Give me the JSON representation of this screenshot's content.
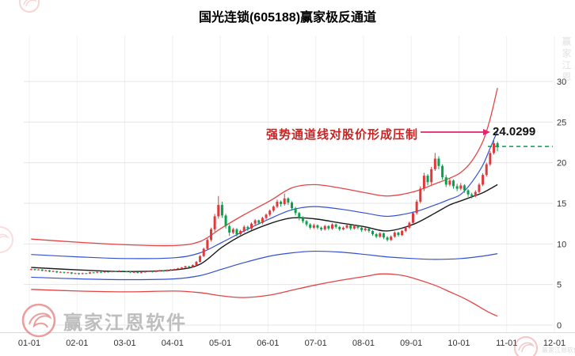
{
  "annotation": {
    "text": "强势通道线对股价形成压制",
    "price_label": "24.0299"
  },
  "watermarks": {
    "bottom_left_text": "赢家江恩软件",
    "corner_text": "赢家江恩软件",
    "side_text": "赢家江恩"
  },
  "colors": {
    "up": "#e0393c",
    "down": "#0aa04e",
    "channel_red": "#e34545",
    "channel_blue": "#3350d4",
    "life_line": "#1a1a1a",
    "grid_h": "#e4e4e4",
    "grid_v": "#f0f0f0",
    "frame": "#d8d8d8",
    "axis_text": "#333333",
    "arrow": "#e1246e",
    "price_dash": "#00a04a"
  },
  "chart_data": {
    "type": "candlestick",
    "title": "国光连锁(605188)赢家极反通道",
    "ylim": [
      0,
      30
    ],
    "y_ticks": [
      30,
      25,
      20,
      15,
      10,
      5,
      0
    ],
    "x_labels": [
      "01-01",
      "02-01",
      "03-01",
      "04-01",
      "05-01",
      "06-01",
      "07-01",
      "08-01",
      "09-01",
      "10-01",
      "11-01",
      "12-01"
    ],
    "candles_per_month": 13,
    "last_price_dash": 22.0,
    "candles": [
      [
        6.85,
        6.95,
        6.75,
        6.9
      ],
      [
        6.9,
        6.95,
        6.72,
        6.8
      ],
      [
        6.8,
        6.9,
        6.76,
        6.85
      ],
      [
        6.85,
        6.88,
        6.62,
        6.7
      ],
      [
        6.7,
        6.82,
        6.65,
        6.75
      ],
      [
        6.75,
        6.78,
        6.52,
        6.6
      ],
      [
        6.6,
        6.72,
        6.55,
        6.65
      ],
      [
        6.65,
        6.68,
        6.42,
        6.5
      ],
      [
        6.5,
        6.62,
        6.45,
        6.55
      ],
      [
        6.55,
        6.58,
        6.36,
        6.45
      ],
      [
        6.45,
        6.56,
        6.4,
        6.5
      ],
      [
        6.5,
        6.52,
        6.28,
        6.35
      ],
      [
        6.35,
        6.46,
        6.3,
        6.4
      ],
      [
        6.4,
        6.44,
        6.22,
        6.3
      ],
      [
        6.3,
        6.46,
        6.26,
        6.4
      ],
      [
        6.4,
        6.43,
        6.28,
        6.35
      ],
      [
        6.35,
        6.56,
        6.3,
        6.5
      ],
      [
        6.5,
        6.53,
        6.38,
        6.45
      ],
      [
        6.45,
        6.61,
        6.4,
        6.55
      ],
      [
        6.55,
        6.58,
        6.42,
        6.5
      ],
      [
        6.5,
        6.66,
        6.45,
        6.6
      ],
      [
        6.6,
        6.63,
        6.47,
        6.55
      ],
      [
        6.55,
        6.71,
        6.5,
        6.65
      ],
      [
        6.65,
        6.68,
        6.52,
        6.6
      ],
      [
        6.6,
        6.76,
        6.55,
        6.7
      ],
      [
        6.7,
        6.73,
        6.57,
        6.65
      ],
      [
        6.65,
        6.68,
        6.5,
        6.6
      ],
      [
        6.6,
        6.63,
        6.42,
        6.5
      ],
      [
        6.5,
        6.61,
        6.45,
        6.55
      ],
      [
        6.55,
        6.58,
        6.37,
        6.45
      ],
      [
        6.45,
        6.56,
        6.4,
        6.5
      ],
      [
        6.5,
        6.66,
        6.45,
        6.6
      ],
      [
        6.6,
        6.71,
        6.52,
        6.65
      ],
      [
        6.65,
        6.68,
        6.47,
        6.55
      ],
      [
        6.55,
        6.76,
        6.5,
        6.7
      ],
      [
        6.7,
        6.81,
        6.62,
        6.75
      ],
      [
        6.75,
        6.78,
        6.57,
        6.65
      ],
      [
        6.65,
        6.86,
        6.6,
        6.8
      ],
      [
        6.8,
        6.91,
        6.72,
        6.85
      ],
      [
        6.85,
        6.96,
        6.78,
        6.9
      ],
      [
        6.9,
        7.06,
        6.84,
        7.0
      ],
      [
        7.0,
        7.16,
        6.92,
        7.1
      ],
      [
        7.1,
        7.32,
        7.02,
        7.25
      ],
      [
        7.25,
        7.3,
        7.08,
        7.2
      ],
      [
        7.2,
        7.48,
        7.12,
        7.4
      ],
      [
        7.4,
        7.9,
        7.32,
        7.8
      ],
      [
        7.8,
        8.62,
        7.7,
        8.5
      ],
      [
        8.5,
        9.55,
        8.4,
        9.4
      ],
      [
        9.4,
        10.7,
        9.3,
        10.5
      ],
      [
        10.5,
        12.0,
        10.3,
        11.8
      ],
      [
        11.8,
        13.7,
        11.5,
        13.4
      ],
      [
        13.4,
        15.9,
        13.1,
        14.8
      ],
      [
        14.8,
        15.2,
        13.2,
        13.5
      ],
      [
        13.5,
        13.7,
        11.9,
        12.2
      ],
      [
        12.2,
        12.4,
        11.0,
        11.4
      ],
      [
        11.4,
        12.0,
        11.2,
        11.8
      ],
      [
        11.8,
        11.95,
        10.9,
        11.2
      ],
      [
        11.2,
        11.75,
        11.0,
        11.6
      ],
      [
        11.6,
        12.3,
        11.4,
        12.1
      ],
      [
        12.1,
        12.25,
        11.6,
        11.9
      ],
      [
        11.9,
        12.65,
        11.7,
        12.5
      ],
      [
        12.5,
        13.05,
        12.3,
        12.9
      ],
      [
        12.9,
        13.0,
        12.35,
        12.6
      ],
      [
        12.6,
        13.35,
        12.4,
        13.2
      ],
      [
        13.2,
        13.75,
        13.0,
        13.6
      ],
      [
        13.6,
        14.25,
        13.4,
        14.1
      ],
      [
        14.1,
        14.75,
        13.9,
        14.6
      ],
      [
        14.6,
        15.45,
        14.4,
        15.2
      ],
      [
        15.2,
        15.35,
        14.6,
        14.9
      ],
      [
        14.9,
        16.2,
        14.7,
        15.6
      ],
      [
        15.6,
        15.75,
        14.8,
        15.1
      ],
      [
        15.1,
        15.25,
        14.1,
        14.4
      ],
      [
        14.4,
        14.55,
        13.5,
        13.8
      ],
      [
        13.8,
        13.95,
        12.9,
        13.2
      ],
      [
        13.2,
        13.4,
        12.55,
        12.8
      ],
      [
        12.8,
        12.95,
        12.15,
        12.4
      ],
      [
        12.4,
        12.55,
        11.8,
        12.0
      ],
      [
        12.0,
        12.5,
        11.85,
        12.3
      ],
      [
        12.3,
        12.4,
        11.8,
        12.0
      ],
      [
        12.0,
        12.15,
        11.6,
        11.8
      ],
      [
        11.8,
        12.35,
        11.65,
        12.2
      ],
      [
        12.2,
        12.3,
        11.7,
        11.9
      ],
      [
        11.9,
        12.55,
        11.75,
        12.4
      ],
      [
        12.4,
        12.5,
        11.9,
        12.1
      ],
      [
        12.1,
        12.2,
        11.6,
        11.8
      ],
      [
        11.8,
        12.15,
        11.65,
        12.0
      ],
      [
        12.0,
        12.45,
        11.85,
        12.3
      ],
      [
        12.3,
        12.4,
        11.7,
        11.9
      ],
      [
        11.9,
        12.35,
        11.75,
        12.2
      ],
      [
        12.2,
        12.3,
        11.8,
        12.0
      ],
      [
        12.0,
        12.1,
        11.5,
        11.7
      ],
      [
        11.7,
        12.05,
        11.55,
        11.9
      ],
      [
        11.9,
        12.0,
        11.4,
        11.6
      ],
      [
        11.6,
        11.7,
        11.0,
        11.2
      ],
      [
        11.2,
        11.35,
        10.7,
        10.9
      ],
      [
        10.9,
        11.45,
        10.75,
        11.3
      ],
      [
        11.3,
        11.4,
        10.6,
        10.8
      ],
      [
        10.8,
        10.95,
        10.3,
        10.5
      ],
      [
        10.5,
        11.05,
        10.35,
        10.9
      ],
      [
        10.9,
        11.55,
        10.75,
        11.4
      ],
      [
        11.4,
        11.5,
        10.9,
        11.1
      ],
      [
        11.1,
        11.75,
        10.95,
        11.6
      ],
      [
        11.6,
        12.15,
        11.45,
        12.0
      ],
      [
        12.0,
        12.75,
        11.85,
        12.6
      ],
      [
        12.6,
        14.0,
        12.5,
        13.8
      ],
      [
        13.8,
        15.45,
        13.6,
        15.2
      ],
      [
        15.2,
        17.1,
        15.0,
        16.8
      ],
      [
        16.8,
        18.75,
        16.5,
        18.4
      ],
      [
        18.4,
        18.6,
        17.2,
        17.6
      ],
      [
        17.6,
        19.5,
        17.3,
        19.2
      ],
      [
        19.2,
        21.2,
        19.0,
        20.5
      ],
      [
        20.5,
        20.8,
        19.2,
        19.6
      ],
      [
        19.6,
        19.8,
        17.9,
        18.2
      ],
      [
        18.2,
        18.5,
        17.0,
        17.3
      ],
      [
        17.3,
        18.1,
        17.1,
        17.8
      ],
      [
        17.8,
        17.95,
        16.8,
        17.1
      ],
      [
        17.1,
        17.4,
        16.5,
        16.8
      ],
      [
        16.8,
        17.5,
        16.6,
        17.2
      ],
      [
        17.2,
        17.35,
        16.3,
        16.6
      ],
      [
        16.6,
        16.75,
        15.8,
        16.1
      ],
      [
        16.1,
        16.3,
        15.6,
        15.9
      ],
      [
        15.9,
        16.6,
        15.75,
        16.4
      ],
      [
        16.4,
        17.5,
        16.25,
        17.3
      ],
      [
        17.3,
        18.7,
        17.1,
        18.5
      ],
      [
        18.5,
        20.0,
        18.3,
        19.8
      ],
      [
        19.8,
        21.45,
        19.6,
        21.2
      ],
      [
        21.2,
        22.8,
        21.0,
        22.4
      ],
      [
        22.4,
        22.6,
        21.4,
        21.9
      ]
    ],
    "lines": [
      {
        "name": "upper-outer-channel-red",
        "color": "#e34545",
        "width": 1.3,
        "points": [
          [
            0,
            10.6
          ],
          [
            13,
            10.2
          ],
          [
            26,
            9.9
          ],
          [
            39,
            9.8
          ],
          [
            46,
            10.3
          ],
          [
            52,
            12.0
          ],
          [
            58,
            13.6
          ],
          [
            65,
            15.3
          ],
          [
            71,
            16.9
          ],
          [
            77,
            17.3
          ],
          [
            84,
            16.9
          ],
          [
            91,
            16.3
          ],
          [
            97,
            15.9
          ],
          [
            104,
            16.4
          ],
          [
            110,
            17.4
          ],
          [
            114,
            18.1
          ],
          [
            117,
            18.8
          ],
          [
            120,
            20.2
          ],
          [
            123,
            22.6
          ],
          [
            125,
            25.4
          ],
          [
            127,
            29.2
          ]
        ]
      },
      {
        "name": "upper-channel-blue",
        "color": "#3350d4",
        "width": 1.2,
        "points": [
          [
            0,
            8.7
          ],
          [
            13,
            8.4
          ],
          [
            26,
            8.2
          ],
          [
            39,
            8.3
          ],
          [
            46,
            8.9
          ],
          [
            52,
            10.2
          ],
          [
            58,
            11.6
          ],
          [
            65,
            13.1
          ],
          [
            71,
            14.2
          ],
          [
            77,
            14.6
          ],
          [
            84,
            14.3
          ],
          [
            91,
            13.8
          ],
          [
            97,
            13.4
          ],
          [
            104,
            13.9
          ],
          [
            110,
            14.8
          ],
          [
            114,
            15.5
          ],
          [
            117,
            16.1
          ],
          [
            120,
            17.6
          ],
          [
            123,
            19.7
          ],
          [
            125,
            21.8
          ],
          [
            127,
            23.9
          ]
        ]
      },
      {
        "name": "life-line-black",
        "color": "#1a1a1a",
        "width": 1.4,
        "points": [
          [
            0,
            7.1
          ],
          [
            13,
            6.8
          ],
          [
            26,
            6.6
          ],
          [
            39,
            6.8
          ],
          [
            46,
            7.5
          ],
          [
            52,
            9.6
          ],
          [
            58,
            11.2
          ],
          [
            65,
            12.5
          ],
          [
            71,
            13.2
          ],
          [
            77,
            13.1
          ],
          [
            84,
            12.6
          ],
          [
            91,
            12.1
          ],
          [
            97,
            11.6
          ],
          [
            104,
            12.4
          ],
          [
            110,
            13.8
          ],
          [
            114,
            14.8
          ],
          [
            117,
            15.3
          ],
          [
            120,
            15.8
          ],
          [
            123,
            16.3
          ],
          [
            127,
            17.3
          ]
        ]
      },
      {
        "name": "lower-channel-blue",
        "color": "#3350d4",
        "width": 1.2,
        "points": [
          [
            0,
            5.9
          ],
          [
            13,
            5.7
          ],
          [
            26,
            5.6
          ],
          [
            39,
            5.7
          ],
          [
            46,
            6.1
          ],
          [
            52,
            6.9
          ],
          [
            58,
            7.7
          ],
          [
            65,
            8.5
          ],
          [
            71,
            8.9
          ],
          [
            77,
            9.1
          ],
          [
            84,
            9.0
          ],
          [
            91,
            8.7
          ],
          [
            97,
            8.4
          ],
          [
            104,
            8.2
          ],
          [
            110,
            8.1
          ],
          [
            117,
            8.2
          ],
          [
            123,
            8.5
          ],
          [
            127,
            8.8
          ]
        ]
      },
      {
        "name": "lower-outer-channel-red",
        "color": "#e34545",
        "width": 1.3,
        "points": [
          [
            0,
            4.4
          ],
          [
            13,
            4.2
          ],
          [
            26,
            4.1
          ],
          [
            39,
            4.2
          ],
          [
            46,
            4.0
          ],
          [
            52,
            3.6
          ],
          [
            58,
            3.4
          ],
          [
            65,
            3.7
          ],
          [
            71,
            4.3
          ],
          [
            77,
            4.9
          ],
          [
            84,
            5.5
          ],
          [
            91,
            6.0
          ],
          [
            95,
            6.3
          ],
          [
            100,
            6.2
          ],
          [
            104,
            5.8
          ],
          [
            110,
            4.9
          ],
          [
            114,
            4.1
          ],
          [
            117,
            3.5
          ],
          [
            120,
            2.8
          ],
          [
            123,
            2.0
          ],
          [
            125,
            1.5
          ],
          [
            127,
            1.1
          ]
        ]
      }
    ]
  }
}
